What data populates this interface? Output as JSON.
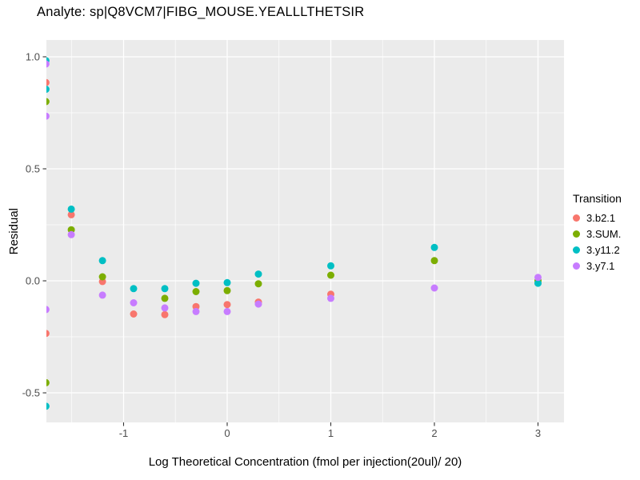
{
  "colors": {
    "panel_bg": "#EBEBEB",
    "grid": "#FFFFFF",
    "tick_text": "#4D4D4D",
    "tick_mark": "#333333",
    "text": "#000000",
    "background": "#FFFFFF"
  },
  "chart_data": {
    "type": "scatter",
    "title": "Analyte: sp|Q8VCM7|FIBG_MOUSE.YEALLLTHETSIR",
    "xlabel": "Log Theoretical Concentration (fmol per injection(20ul)/ 20)",
    "ylabel": "Residual",
    "x_range": [
      -1.745,
      3.251
    ],
    "y_range": [
      -0.632,
      1.075
    ],
    "x_ticks": {
      "major": [
        {
          "v": -1,
          "label": "-1"
        },
        {
          "v": 0,
          "label": "0"
        },
        {
          "v": 1,
          "label": "1"
        },
        {
          "v": 2,
          "label": "2"
        },
        {
          "v": 3,
          "label": "3"
        }
      ],
      "minor": [
        -1.5,
        -0.5,
        0.5,
        1.5,
        2.5
      ]
    },
    "y_ticks": {
      "major": [
        {
          "v": 1.0,
          "label": "1.0"
        },
        {
          "v": 0.5,
          "label": "0.5"
        },
        {
          "v": 0.0,
          "label": "0.0"
        },
        {
          "v": -0.5,
          "label": "-0.5"
        }
      ],
      "minor": [
        0.75,
        0.25,
        -0.25
      ]
    },
    "grid": "white major+minor gridlines on grey panel",
    "legend": {
      "title": "Transition",
      "position": "right"
    },
    "point_radius": 4.5,
    "series": [
      {
        "name": "3.b2.1",
        "color": "#F8766D",
        "points": [
          [
            -1.75,
            0.885
          ],
          [
            -1.75,
            -0.235
          ],
          [
            -1.505,
            0.295
          ],
          [
            -1.204,
            -0.003
          ],
          [
            -0.903,
            -0.148
          ],
          [
            -0.602,
            -0.151
          ],
          [
            -0.301,
            -0.115
          ],
          [
            0.0,
            -0.106
          ],
          [
            0.301,
            -0.095
          ],
          [
            1.0,
            -0.06
          ]
        ]
      },
      {
        "name": "3.SUM.",
        "color": "#7CAE00",
        "points": [
          [
            -1.75,
            0.8
          ],
          [
            -1.75,
            -0.455
          ],
          [
            -1.505,
            0.228
          ],
          [
            -1.204,
            0.018
          ],
          [
            -0.602,
            -0.078
          ],
          [
            -0.301,
            -0.048
          ],
          [
            0.0,
            -0.044
          ],
          [
            0.301,
            -0.013
          ],
          [
            1.0,
            0.025
          ],
          [
            2.0,
            0.09
          ],
          [
            3.0,
            0.0
          ]
        ]
      },
      {
        "name": "3.y11.2",
        "color": "#00BFC4",
        "points": [
          [
            -1.75,
            0.983
          ],
          [
            -1.75,
            0.855
          ],
          [
            -1.75,
            -0.56
          ],
          [
            -1.505,
            0.32
          ],
          [
            -1.204,
            0.09
          ],
          [
            -0.903,
            -0.035
          ],
          [
            -0.602,
            -0.035
          ],
          [
            -0.301,
            -0.011
          ],
          [
            0.0,
            -0.008
          ],
          [
            0.301,
            0.03
          ],
          [
            1.0,
            0.067
          ],
          [
            2.0,
            0.149
          ],
          [
            3.0,
            -0.011
          ]
        ]
      },
      {
        "name": "3.y7.1",
        "color": "#C77CFF",
        "points": [
          [
            -1.75,
            0.968
          ],
          [
            -1.75,
            0.735
          ],
          [
            -1.75,
            -0.128
          ],
          [
            -1.505,
            0.206
          ],
          [
            -1.204,
            -0.064
          ],
          [
            -0.903,
            -0.098
          ],
          [
            -0.602,
            -0.121
          ],
          [
            -0.301,
            -0.137
          ],
          [
            0.0,
            -0.137
          ],
          [
            0.301,
            -0.104
          ],
          [
            1.0,
            -0.078
          ],
          [
            2.0,
            -0.032
          ],
          [
            3.0,
            0.015
          ]
        ]
      }
    ]
  }
}
